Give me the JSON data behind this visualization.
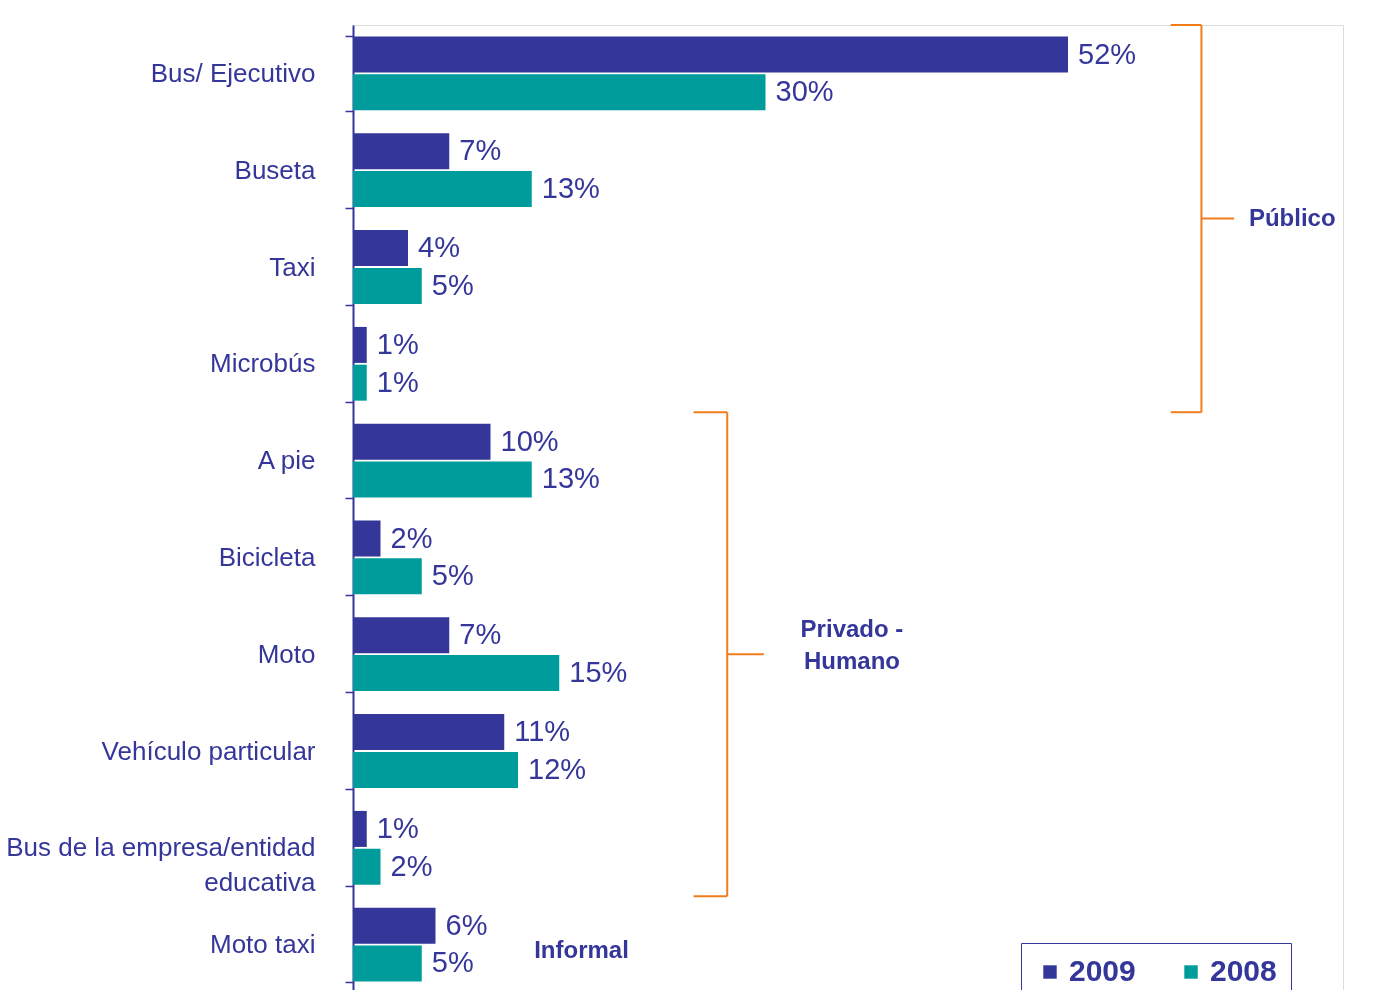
{
  "chart_data": {
    "type": "bar",
    "orientation": "horizontal",
    "categories": [
      "Bus/ Ejecutivo",
      "Buseta",
      "Taxi",
      "Microbús",
      "A pie",
      "Bicicleta",
      "Moto",
      "Vehículo particular",
      "Bus de la empresa/entidad\neducativa",
      "Moto taxi"
    ],
    "series": [
      {
        "name": "2009",
        "color": "#35369a",
        "values": [
          52,
          7,
          4,
          1,
          10,
          2,
          7,
          11,
          1,
          6
        ],
        "value_labels": [
          "52%",
          "7%",
          "4%",
          "1%",
          "10%",
          "2%",
          "7%",
          "11%",
          "1%",
          "6%"
        ]
      },
      {
        "name": "2008",
        "color": "#009b9b",
        "values": [
          30,
          13,
          5,
          1,
          13,
          5,
          15,
          12,
          2,
          5
        ],
        "value_labels": [
          "30%",
          "13%",
          "5%",
          "1%",
          "13%",
          "5%",
          "15%",
          "12%",
          "2%",
          "5%"
        ]
      }
    ],
    "xlim": [
      0,
      72
    ],
    "tick_labels": "y",
    "legend": "bottom right",
    "annotations": [
      "Público",
      "Privado -\nHumano",
      "Informal"
    ]
  }
}
